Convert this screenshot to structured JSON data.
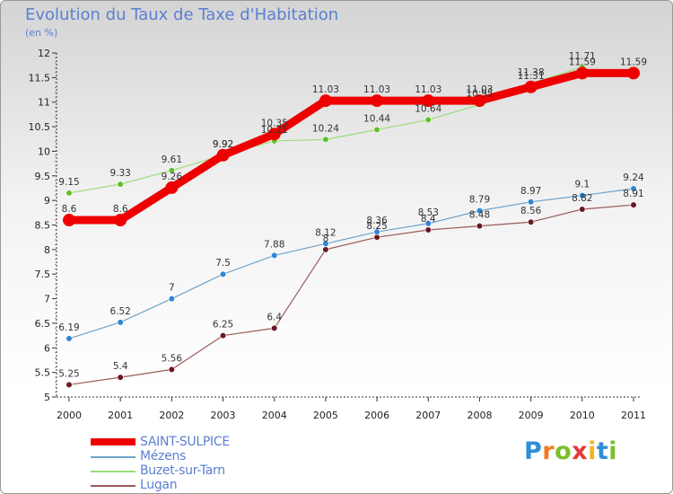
{
  "title": "Evolution du Taux de Taxe d'Habitation",
  "subtitle": "(en %)",
  "brand": {
    "name": "Proxiti",
    "letter_colors": [
      "#2e8fd6",
      "#f07c1f",
      "#7bbf2c",
      "#e23a3a",
      "#f0b51f",
      "#2e8fd6",
      "#7bbf2c"
    ]
  },
  "chart_data": {
    "type": "line",
    "x": [
      "2000",
      "2001",
      "2002",
      "2003",
      "2004",
      "2005",
      "2006",
      "2007",
      "2008",
      "2009",
      "2010",
      "2011"
    ],
    "ylim": [
      5,
      12
    ],
    "yticks": [
      "5",
      "5.5",
      "6",
      "6.5",
      "7",
      "7.5",
      "8",
      "8.5",
      "9",
      "9.5",
      "10",
      "10.5",
      "11",
      "11.5",
      "12"
    ],
    "grid": false,
    "legend_position": "bottom-left",
    "series": [
      {
        "name": "SAINT-SULPICE",
        "color": "#ee0000",
        "width": 9,
        "marker_r": 7,
        "values": [
          8.6,
          8.6,
          9.26,
          9.92,
          10.35,
          11.03,
          11.03,
          11.03,
          11.03,
          11.31,
          11.59,
          11.59
        ],
        "labels": [
          "8.6",
          "8.6",
          "9.26",
          "9.92",
          "10.35",
          "11.03",
          "11.03",
          "11.03",
          "11.03",
          "11.31",
          "11.59",
          "11.59"
        ]
      },
      {
        "name": "Mézens",
        "color": "#6fa3c9",
        "marker": "#2e86d6",
        "width": 1.2,
        "marker_r": 3.3,
        "values": [
          6.19,
          6.52,
          7.0,
          7.5,
          7.88,
          8.12,
          8.36,
          8.53,
          8.79,
          8.97,
          9.1,
          9.24
        ],
        "labels": [
          "6.19",
          "6.52",
          "7",
          "7.5",
          "7.88",
          "8.12",
          "8.36",
          "8.53",
          "8.79",
          "8.97",
          "9.1",
          "9.24"
        ]
      },
      {
        "name": "Buzet-sur-Tarn",
        "color": "#9ddc78",
        "marker": "#5fc02a",
        "width": 1.2,
        "marker_r": 3.3,
        "values": [
          9.15,
          9.33,
          9.61,
          9.92,
          10.21,
          10.24,
          10.44,
          10.64,
          10.95,
          11.38,
          11.71,
          null
        ],
        "labels": [
          "9.15",
          "9.33",
          "9.61",
          "9.92",
          "10.21",
          "10.24",
          "10.44",
          "10.64",
          "10.95",
          "11.38",
          "11.71",
          ""
        ]
      },
      {
        "name": "Lugan",
        "color": "#9a5a5a",
        "marker": "#6a1820",
        "width": 1.2,
        "marker_r": 3.3,
        "values": [
          5.25,
          5.4,
          5.56,
          6.25,
          6.4,
          8.0,
          8.25,
          8.4,
          8.48,
          8.56,
          8.82,
          8.91
        ],
        "labels": [
          "5.25",
          "5.4",
          "5.56",
          "6.25",
          "6.4",
          "8",
          "8.25",
          "8.4",
          "8.48",
          "8.56",
          "8.82",
          "8.91"
        ]
      }
    ]
  }
}
